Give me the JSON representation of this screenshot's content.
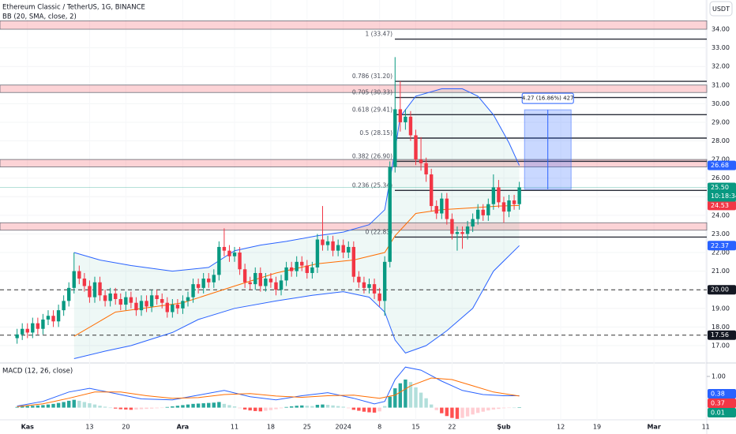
{
  "chart_data": [
    {
      "type": "candlestick",
      "title": "Ethereum Classic / TetherUS, 1G, BINANCE",
      "indicator": "BB (20, SMA, close, 2)",
      "currency": "USDT",
      "countdown": "10:18:34",
      "up_color": "#089981",
      "down_color": "#f23645",
      "xlim": [
        -5.3,
        131.2
      ],
      "xticks": [
        {
          "value": 0,
          "label": "Kas"
        },
        {
          "value": 12,
          "label": "13"
        },
        {
          "value": 19,
          "label": "20"
        },
        {
          "value": 30,
          "label": "Ara"
        },
        {
          "value": 40,
          "label": "11"
        },
        {
          "value": 47,
          "label": "18"
        },
        {
          "value": 54,
          "label": "25"
        },
        {
          "value": 61,
          "label": "2024"
        },
        {
          "value": 68,
          "label": "8"
        },
        {
          "value": 75,
          "label": "15"
        },
        {
          "value": 82,
          "label": "22"
        },
        {
          "value": 92,
          "label": "Şub"
        },
        {
          "value": 103,
          "label": "12"
        },
        {
          "value": 110,
          "label": "19"
        },
        {
          "value": 121,
          "label": "Mar"
        },
        {
          "value": 131,
          "label": "11"
        }
      ],
      "ylim": [
        16.15,
        35.57
      ],
      "yticks": [
        {
          "value": 17,
          "label": "17.00"
        },
        {
          "value": 18,
          "label": "18.00"
        },
        {
          "value": 19,
          "label": "19.00"
        },
        {
          "value": 20,
          "label": "20.00"
        },
        {
          "value": 21,
          "label": "21.00"
        },
        {
          "value": 22,
          "label": "22.00"
        },
        {
          "value": 23,
          "label": "23.00"
        },
        {
          "value": 24,
          "label": "24.00"
        },
        {
          "value": 25,
          "label": "25.00"
        },
        {
          "value": 26,
          "label": "26.00"
        },
        {
          "value": 27,
          "label": "27.00"
        },
        {
          "value": 28,
          "label": "28.00"
        },
        {
          "value": 29,
          "label": "29.00"
        },
        {
          "value": 30,
          "label": "30.00"
        },
        {
          "value": 31,
          "label": "31.00"
        },
        {
          "value": 32,
          "label": "32.00"
        },
        {
          "value": 33,
          "label": "33.00"
        },
        {
          "value": 34,
          "label": "34.00"
        }
      ],
      "grid": true,
      "x": [
        -2,
        -1,
        0,
        1,
        2,
        3,
        4,
        5,
        6,
        7,
        8,
        9,
        10,
        11,
        12,
        13,
        14,
        15,
        16,
        17,
        18,
        19,
        20,
        21,
        22,
        23,
        24,
        25,
        26,
        27,
        28,
        29,
        30,
        31,
        32,
        33,
        34,
        35,
        36,
        37,
        38,
        39,
        40,
        41,
        42,
        43,
        44,
        45,
        46,
        47,
        48,
        49,
        50,
        51,
        52,
        53,
        54,
        55,
        56,
        57,
        58,
        59,
        60,
        61,
        62,
        63,
        64,
        65,
        66,
        67,
        68,
        69,
        70,
        71,
        72,
        73,
        74,
        75,
        76,
        77,
        78,
        79,
        80,
        81,
        82,
        83,
        84,
        85,
        86,
        87,
        88,
        89,
        90,
        91,
        92,
        93,
        94,
        95
      ],
      "open": [
        17.4,
        17.6,
        17.9,
        17.7,
        18.2,
        17.9,
        18.4,
        18.6,
        18.3,
        18.9,
        19.4,
        20.1,
        21.0,
        20.6,
        20.2,
        19.6,
        20.4,
        19.7,
        19.4,
        19.8,
        19.5,
        19.2,
        19.6,
        19.3,
        18.9,
        19.4,
        19.1,
        19.7,
        19.5,
        19.3,
        18.8,
        19.2,
        19.0,
        19.4,
        19.6,
        20.3,
        20.1,
        20.6,
        20.4,
        20.8,
        22.3,
        22.1,
        21.8,
        22.0,
        21.1,
        20.4,
        20.3,
        20.9,
        20.2,
        20.6,
        20.4,
        20.0,
        20.5,
        21.2,
        21.0,
        21.5,
        21.3,
        20.9,
        21.2,
        22.7,
        22.4,
        22.6,
        22.1,
        22.4,
        22.0,
        22.3,
        20.7,
        20.4,
        20.1,
        20.3,
        19.8,
        19.4,
        21.5,
        26.6,
        29.7,
        29.0,
        29.3,
        28.3,
        27.0,
        26.8,
        26.2,
        24.5,
        24.1,
        24.9,
        23.8,
        23.0,
        23.1,
        23.0,
        23.4,
        23.8,
        24.3,
        24.0,
        24.6,
        25.5,
        24.7,
        24.2,
        24.8,
        24.6
      ],
      "high": [
        17.9,
        18.2,
        18.2,
        18.5,
        18.5,
        18.7,
        18.9,
        18.9,
        19.2,
        19.7,
        20.4,
        22.0,
        21.3,
        20.9,
        20.5,
        20.7,
        20.7,
        20.0,
        20.1,
        20.1,
        19.8,
        19.9,
        19.9,
        19.6,
        19.7,
        19.7,
        20.0,
        20.0,
        19.8,
        19.6,
        19.5,
        19.5,
        19.7,
        19.9,
        20.6,
        20.6,
        20.9,
        20.9,
        21.1,
        22.6,
        23.3,
        22.4,
        22.3,
        22.3,
        21.4,
        20.7,
        21.2,
        21.2,
        20.9,
        20.9,
        20.7,
        20.8,
        21.5,
        21.5,
        21.8,
        21.8,
        21.6,
        21.5,
        23.0,
        24.5,
        22.9,
        22.9,
        22.7,
        22.7,
        22.6,
        22.6,
        21.0,
        20.7,
        20.6,
        20.6,
        20.1,
        21.8,
        26.9,
        32.5,
        31.2,
        29.7,
        29.6,
        28.6,
        28.2,
        27.1,
        26.5,
        24.8,
        25.2,
        25.2,
        24.1,
        23.4,
        23.4,
        23.7,
        24.1,
        24.6,
        24.6,
        24.9,
        26.2,
        25.9,
        25.0,
        25.1,
        25.1,
        25.8
      ],
      "low": [
        17.1,
        17.3,
        17.4,
        17.4,
        17.6,
        17.6,
        18.1,
        18.0,
        18.0,
        18.6,
        19.1,
        19.8,
        20.3,
        19.9,
        19.3,
        19.3,
        19.4,
        19.1,
        19.1,
        19.2,
        18.9,
        18.9,
        19.0,
        18.6,
        18.6,
        18.8,
        18.8,
        19.2,
        19.0,
        18.5,
        18.5,
        18.7,
        18.7,
        19.1,
        19.3,
        19.8,
        19.8,
        20.1,
        20.1,
        20.5,
        21.8,
        21.5,
        21.5,
        20.8,
        20.1,
        20.0,
        20.0,
        19.9,
        19.9,
        20.1,
        19.7,
        19.7,
        20.2,
        20.7,
        20.7,
        21.0,
        20.6,
        20.6,
        20.9,
        22.1,
        22.1,
        21.8,
        21.8,
        21.7,
        21.7,
        20.4,
        20.1,
        19.8,
        19.8,
        19.5,
        19.1,
        18.6,
        21.2,
        26.3,
        28.5,
        28.6,
        28.0,
        26.7,
        26.4,
        25.8,
        24.2,
        23.8,
        23.8,
        23.5,
        22.7,
        22.1,
        22.2,
        22.7,
        23.1,
        23.5,
        23.7,
        23.7,
        24.3,
        24.4,
        23.6,
        23.9,
        24.3,
        24.3
      ],
      "close": [
        17.6,
        17.9,
        17.7,
        18.2,
        17.9,
        18.4,
        18.6,
        18.3,
        18.9,
        19.4,
        20.1,
        21.0,
        20.6,
        20.2,
        19.6,
        20.4,
        19.7,
        19.4,
        19.8,
        19.5,
        19.2,
        19.6,
        19.3,
        18.9,
        19.4,
        19.1,
        19.7,
        19.5,
        19.3,
        18.8,
        19.2,
        19.0,
        19.4,
        19.6,
        20.3,
        20.1,
        20.6,
        20.4,
        20.8,
        22.3,
        22.1,
        21.8,
        22.0,
        21.1,
        20.4,
        20.3,
        20.9,
        20.2,
        20.6,
        20.4,
        20.0,
        20.5,
        21.2,
        21.0,
        21.5,
        21.3,
        20.9,
        21.2,
        22.7,
        22.4,
        22.6,
        22.1,
        22.4,
        22.0,
        22.3,
        20.7,
        20.4,
        20.1,
        20.3,
        19.8,
        19.4,
        21.5,
        26.6,
        29.7,
        29.0,
        29.3,
        28.3,
        27.0,
        26.8,
        26.2,
        24.5,
        24.1,
        24.9,
        23.8,
        23.0,
        23.1,
        23.0,
        23.4,
        23.8,
        24.3,
        24.0,
        24.6,
        25.5,
        24.7,
        24.2,
        24.8,
        24.6,
        25.5
      ],
      "last_price": {
        "value": 25.5,
        "label": "25.50"
      },
      "series": [
        {
          "color": "#2962ff",
          "x": [
            9,
            14,
            20,
            28,
            35,
            40,
            45,
            50,
            56,
            61,
            66,
            69,
            71,
            72,
            75,
            80,
            84,
            87,
            90,
            93,
            95
          ],
          "values": [
            22.0,
            21.6,
            21.3,
            21.0,
            21.2,
            22.1,
            22.4,
            22.6,
            22.9,
            23.1,
            23.5,
            24.3,
            27.5,
            29.3,
            30.4,
            30.8,
            30.8,
            30.4,
            29.4,
            27.9,
            26.68
          ]
        },
        {
          "color": "#ff6d00",
          "x": [
            9,
            17,
            30,
            40,
            48,
            56,
            63,
            69,
            71,
            75,
            80,
            86,
            91,
            95
          ],
          "values": [
            17.5,
            18.8,
            19.3,
            20.2,
            20.9,
            21.4,
            21.6,
            22.0,
            22.9,
            24.1,
            24.3,
            24.4,
            24.5,
            24.53
          ]
        },
        {
          "color": "#2962ff",
          "x": [
            9,
            15,
            20,
            28,
            33,
            40,
            48,
            55,
            61,
            66,
            69,
            71,
            73,
            77,
            81,
            86,
            90,
            95
          ],
          "values": [
            16.3,
            16.7,
            17.0,
            17.7,
            18.4,
            19.0,
            19.4,
            19.7,
            19.9,
            19.6,
            18.8,
            17.3,
            16.6,
            17.0,
            17.8,
            19.0,
            21.0,
            22.37
          ]
        }
      ],
      "label_colors": [
        "#2962ff",
        "#f23645",
        "#2962ff"
      ],
      "zones": [
        [
          34.0,
          34.45
        ],
        [
          30.6,
          31.0
        ],
        [
          26.6,
          27.0
        ],
        [
          23.2,
          23.6
        ]
      ],
      "fib": [
        {
          "value": 33.47,
          "label": "1 (33.47)"
        },
        {
          "value": 31.2,
          "label": "0.786 (31.20)"
        },
        {
          "value": 30.33,
          "label": "0.705 (30.33)"
        },
        {
          "value": 29.41,
          "label": "0.618 (29.41)"
        },
        {
          "value": 28.15,
          "label": "0.5 (28.15)"
        },
        {
          "value": 26.9,
          "label": "0.382 (26.90)"
        },
        {
          "value": 25.34,
          "label": "0.236 (25.34)"
        },
        {
          "value": 22.83,
          "label": "0 (22.83)"
        }
      ],
      "levels": [
        {
          "value": 20,
          "label": "20.00"
        },
        17.56
      ],
      "measure": {
        "label": "4.27 (16.86%) 427",
        "x": [
          96,
          105
        ],
        "y": [
          25.4,
          29.67
        ]
      }
    },
    {
      "type": "macd",
      "title": "MACD (12, 26, close)",
      "xlim": [
        -5.3,
        131.2
      ],
      "ylim": [
        -0.39,
        1.38
      ],
      "yticks": [
        {
          "value": 1,
          "label": "1.00"
        }
      ],
      "x": [
        -2,
        -1,
        0,
        1,
        2,
        3,
        4,
        5,
        6,
        7,
        8,
        9,
        10,
        11,
        12,
        13,
        14,
        15,
        16,
        17,
        18,
        19,
        20,
        21,
        22,
        23,
        24,
        25,
        26,
        27,
        28,
        29,
        30,
        31,
        32,
        33,
        34,
        35,
        36,
        37,
        38,
        39,
        40,
        41,
        42,
        43,
        44,
        45,
        46,
        47,
        48,
        49,
        50,
        51,
        52,
        53,
        54,
        55,
        56,
        57,
        58,
        59,
        60,
        61,
        62,
        63,
        64,
        65,
        66,
        67,
        68,
        69,
        70,
        71,
        72,
        73,
        74,
        75,
        76,
        77,
        78,
        79,
        80,
        81,
        82,
        83,
        84,
        85,
        86,
        87,
        88,
        89,
        90,
        91,
        92,
        93,
        94,
        95
      ],
      "histogram": [
        0.02,
        0.04,
        0.05,
        0.06,
        0.07,
        0.08,
        0.1,
        0.12,
        0.15,
        0.18,
        0.22,
        0.25,
        0.22,
        0.18,
        0.14,
        0.1,
        0.06,
        0.03,
        0.0,
        -0.03,
        -0.05,
        -0.06,
        -0.07,
        -0.06,
        -0.05,
        -0.04,
        -0.03,
        -0.02,
        -0.01,
        0.02,
        0.04,
        0.06,
        0.08,
        0.1,
        0.12,
        0.13,
        0.14,
        0.15,
        0.16,
        0.18,
        0.12,
        0.08,
        0.04,
        -0.02,
        -0.06,
        -0.09,
        -0.11,
        -0.12,
        -0.1,
        -0.08,
        -0.05,
        -0.02,
        0.02,
        0.04,
        0.06,
        0.07,
        0.06,
        0.05,
        0.09,
        0.1,
        0.09,
        0.07,
        0.05,
        0.03,
        -0.02,
        -0.07,
        -0.1,
        -0.13,
        -0.15,
        -0.16,
        -0.12,
        0.05,
        0.35,
        0.62,
        0.78,
        0.9,
        0.82,
        0.65,
        0.48,
        0.3,
        0.1,
        -0.08,
        -0.18,
        -0.27,
        -0.33,
        -0.36,
        -0.33,
        -0.28,
        -0.22,
        -0.17,
        -0.13,
        -0.09,
        -0.06,
        -0.04,
        -0.02,
        -0.01,
        0.0,
        0.01
      ],
      "histogram_colors": [
        "#26a69a",
        "#b2dfdb",
        "#ff5252",
        "#ffcdd2"
      ],
      "series": [
        {
          "color": "#2962ff",
          "x": [
            -2,
            3,
            8,
            12,
            17,
            22,
            28,
            33,
            38,
            43,
            48,
            53,
            58,
            63,
            67,
            69,
            71,
            73,
            76,
            80,
            84,
            88,
            92,
            95
          ],
          "values": [
            0.05,
            0.2,
            0.5,
            0.62,
            0.45,
            0.28,
            0.25,
            0.4,
            0.55,
            0.35,
            0.25,
            0.38,
            0.48,
            0.3,
            0.12,
            0.2,
            0.9,
            1.3,
            1.2,
            0.85,
            0.55,
            0.42,
            0.38,
            0.38
          ]
        },
        {
          "color": "#ff6d00",
          "x": [
            -2,
            3,
            8,
            13,
            18,
            23,
            28,
            33,
            38,
            43,
            48,
            53,
            58,
            63,
            68,
            71,
            74,
            78,
            82,
            86,
            90,
            95
          ],
          "values": [
            0.03,
            0.12,
            0.3,
            0.5,
            0.5,
            0.38,
            0.3,
            0.32,
            0.42,
            0.45,
            0.37,
            0.33,
            0.38,
            0.4,
            0.3,
            0.4,
            0.7,
            0.95,
            0.9,
            0.7,
            0.5,
            0.37
          ]
        }
      ],
      "label_colors": [
        "#2962ff",
        "#f23645",
        "#089981"
      ]
    }
  ]
}
